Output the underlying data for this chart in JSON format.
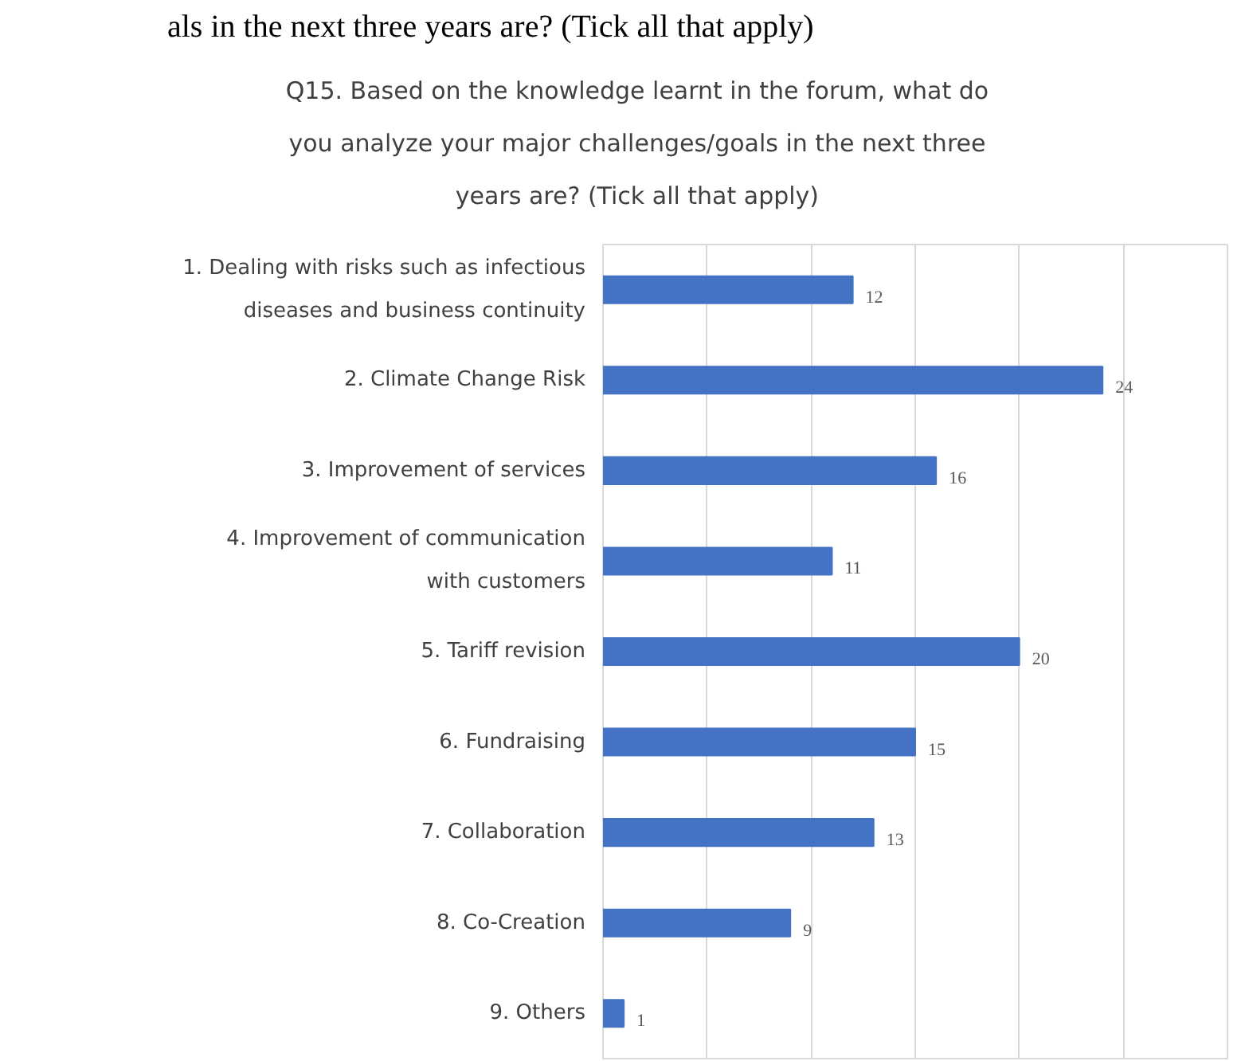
{
  "chart_data": {
    "type": "bar",
    "orientation": "horizontal",
    "title": "Q15. Based on the knowledge learnt in the forum, what do you analyze your major challenges/goals in the next three years are? (Tick all that apply)",
    "annotations": [
      "als in the next three years are? (Tick all that apply)"
    ],
    "categories": [
      "1. Dealing with risks such as infectious\ndiseases and business continuity",
      "2. Climate Change Risk",
      "3. Improvement of services",
      "4. Improvement of communication\nwith customers",
      "5. Tariff revision",
      "6. Fundraising",
      "7. Collaboration",
      "8. Co-Creation",
      "9. Others"
    ],
    "values": [
      12,
      24,
      16,
      11,
      20,
      15,
      13,
      9,
      1
    ],
    "color": "#4472c4",
    "xlim": [
      0,
      30
    ],
    "xticks": [
      {
        "value": 5,
        "label": null
      },
      {
        "value": 10,
        "label": null
      },
      {
        "value": 15,
        "label": null
      },
      {
        "value": 20,
        "label": null
      },
      {
        "value": 25,
        "label": null
      }
    ],
    "grid": "x",
    "tick_labels": false,
    "data_labels": true
  }
}
